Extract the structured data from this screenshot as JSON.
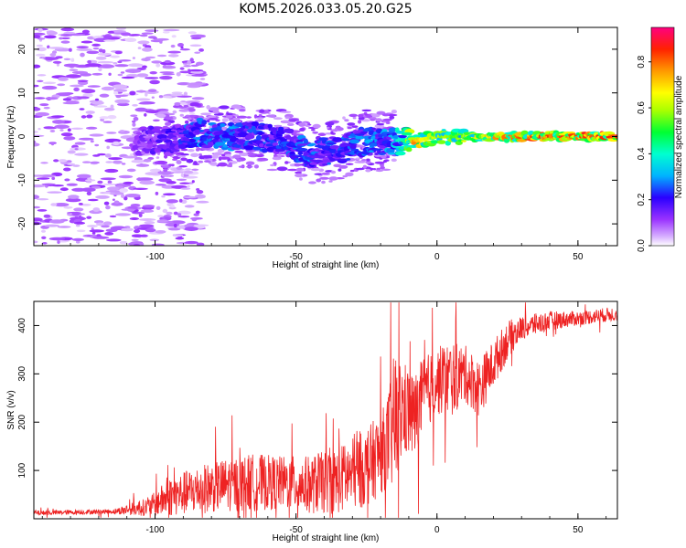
{
  "figure_title": "KOM5.2026.033.05.20.G25",
  "chart_data": [
    {
      "type": "heatmap",
      "xlabel": "Height of straight line (km)",
      "ylabel": "Frequency (Hz)",
      "xlim": [
        -143,
        64
      ],
      "ylim": [
        -25,
        25
      ],
      "xticks": [
        -100,
        -50,
        0,
        50
      ],
      "xtick_labels": [
        "-100",
        "-50",
        "0",
        "50"
      ],
      "yticks": [
        -20,
        -10,
        0,
        10,
        20
      ],
      "ytick_labels": [
        "-20",
        "-10",
        "0",
        "10",
        "20"
      ],
      "colorbar": {
        "label": "Normalized spectral amplitude",
        "range": [
          0,
          0.95
        ],
        "ticks": [
          0.0,
          0.2,
          0.4,
          0.6,
          0.8
        ],
        "tick_labels": [
          "0.0",
          "0.2",
          "0.4",
          "0.6",
          "0.8"
        ],
        "colors": [
          "#ffffff",
          "#d9b3ff",
          "#8000ff",
          "#0000ff",
          "#00ffff",
          "#00ff00",
          "#ffff00",
          "#ff8000",
          "#ff0000",
          "#ff0080"
        ]
      },
      "ridge_centerline": {
        "x": [
          -105,
          -95,
          -85,
          -75,
          -65,
          -55,
          -45,
          -35,
          -25,
          -15,
          -8,
          0,
          5,
          15,
          30,
          64
        ],
        "frequency": [
          -1,
          -1,
          1,
          0,
          0,
          -1,
          -4,
          -3,
          -1,
          -1,
          -1,
          0,
          0,
          0,
          0,
          0
        ],
        "peak_amplitude": [
          0.15,
          0.2,
          0.3,
          0.3,
          0.25,
          0.25,
          0.28,
          0.25,
          0.3,
          0.32,
          0.78,
          0.6,
          0.55,
          0.7,
          0.82,
          0.85
        ]
      }
    },
    {
      "type": "line",
      "xlabel": "Height of straight line (km)",
      "ylabel": "SNR (v/v)",
      "xlim": [
        -143,
        64
      ],
      "ylim": [
        0,
        450
      ],
      "xticks": [
        -100,
        -50,
        0,
        50
      ],
      "xtick_labels": [
        "-100",
        "-50",
        "0",
        "50"
      ],
      "yticks": [
        100,
        200,
        300,
        400
      ],
      "ytick_labels": [
        "100",
        "200",
        "300",
        "400"
      ],
      "line_color": "#ee2222",
      "envelope": {
        "x": [
          -143,
          -115,
          -102,
          -95,
          -85,
          -75,
          -65,
          -55,
          -45,
          -35,
          -25,
          -18,
          -15,
          -12,
          -8,
          -5,
          0,
          5,
          10,
          15,
          20,
          25,
          30,
          40,
          50,
          64
        ],
        "baseline": [
          12,
          15,
          25,
          45,
          60,
          70,
          75,
          75,
          70,
          80,
          105,
          150,
          200,
          230,
          210,
          255,
          285,
          290,
          300,
          270,
          320,
          370,
          395,
          410,
          415,
          425
        ],
        "amplitude": [
          5,
          5,
          20,
          40,
          50,
          55,
          60,
          55,
          60,
          70,
          80,
          90,
          150,
          100,
          90,
          80,
          70,
          80,
          60,
          60,
          50,
          40,
          25,
          20,
          15,
          15
        ]
      }
    }
  ]
}
